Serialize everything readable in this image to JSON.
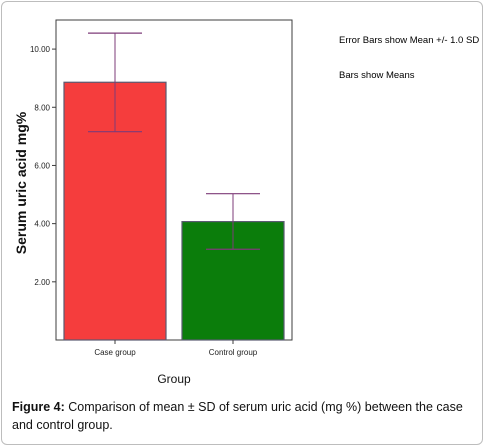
{
  "chart_data": {
    "type": "bar",
    "categories": [
      "Case group",
      "Control group"
    ],
    "values": [
      8.86,
      4.07
    ],
    "error_low": [
      7.16,
      3.12
    ],
    "error_high": [
      10.55,
      5.03
    ],
    "colors": [
      "#f53d3d",
      "#0b7d0b"
    ],
    "bar_border_color": "#5b5b72",
    "error_bar_color": "#7e3b78",
    "xlabel": "Group",
    "ylabel": "Serum uric acid mg%",
    "ylim": [
      0,
      11.0
    ],
    "yticks": [
      2.0,
      4.0,
      6.0,
      8.0,
      10.0
    ],
    "ytick_labels": [
      "2.00",
      "4.00",
      "6.00",
      "8.00",
      "10.00"
    ],
    "grid": false,
    "annotations": [
      "Error Bars show Mean +/- 1.0 SD",
      "Bars show Means"
    ]
  },
  "caption": {
    "label": "Figure 4:",
    "text": " Comparison of mean ± SD of serum uric acid (mg %) between the case and control group."
  }
}
